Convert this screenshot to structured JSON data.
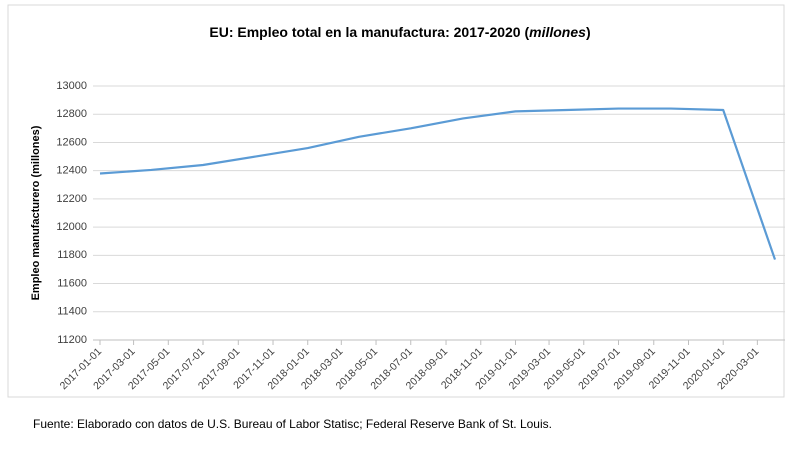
{
  "chart_data": {
    "type": "line",
    "title": [
      "EU: Empleo total en la manufactura: 2017-2020 (",
      "millones",
      ")"
    ],
    "ylabel": "Empleo manufacturero (millones)",
    "source": "Fuente: Elaborado con datos de U.S. Bureau of Labor Statisc; Federal Reserve Bank of St. Louis.",
    "x": [
      "2017-01-01",
      "2017-04-01",
      "2017-07-01",
      "2017-10-01",
      "2018-01-01",
      "2018-04-01",
      "2018-07-01",
      "2018-10-01",
      "2019-01-01",
      "2019-04-01",
      "2019-07-01",
      "2019-10-01",
      "2020-01-01",
      "2020-04-01"
    ],
    "series": [
      {
        "name": "Empleo manufacturero",
        "color": "#5b9bd5",
        "values": [
          12380,
          12405,
          12440,
          12500,
          12560,
          12640,
          12700,
          12770,
          12820,
          12830,
          12840,
          12840,
          12830,
          11770
        ]
      }
    ],
    "xlim": [
      "2017-01-01",
      "2020-04-01"
    ],
    "xticks": [
      "2017-01-01",
      "2017-03-01",
      "2017-05-01",
      "2017-07-01",
      "2017-09-01",
      "2017-11-01",
      "2018-01-01",
      "2018-03-01",
      "2018-05-01",
      "2018-07-01",
      "2018-09-01",
      "2018-11-01",
      "2019-01-01",
      "2019-03-01",
      "2019-05-01",
      "2019-07-01",
      "2019-09-01",
      "2019-11-01",
      "2020-01-01",
      "2020-03-01"
    ],
    "ylim": [
      11200,
      13000
    ],
    "yticks": [
      11200,
      11400,
      11600,
      11800,
      12000,
      12200,
      12400,
      12600,
      12800,
      13000
    ],
    "grid": true
  }
}
